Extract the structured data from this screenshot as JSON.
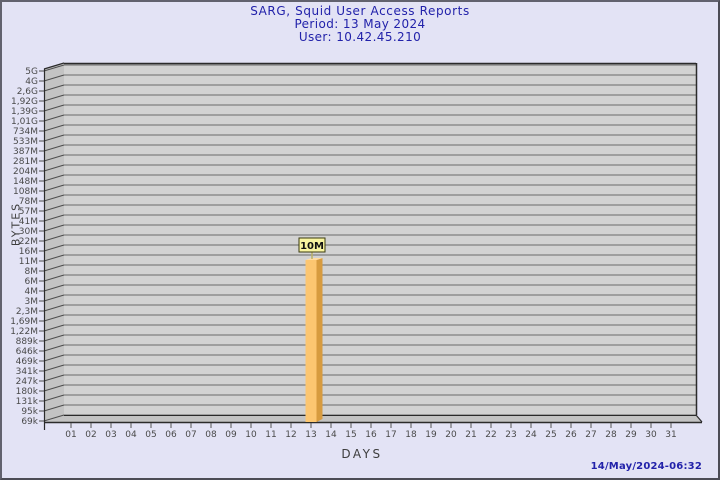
{
  "footer": {
    "timestamp": "14/May/2024-06:32"
  },
  "chart_data": {
    "type": "bar",
    "title": "SARG, Squid User Access Reports",
    "subtitle_period": "Period: 13 May 2024",
    "subtitle_user": "User: 10.42.45.210",
    "xlabel": "DAYS",
    "ylabel": "BYTES",
    "y_scale": "log",
    "grid": true,
    "legend": "none",
    "y_tick_labels_top_to_bottom": [
      "5G",
      "4G",
      "2,6G",
      "1,92G",
      "1,39G",
      "1,01G",
      "734M",
      "533M",
      "387M",
      "281M",
      "204M",
      "148M",
      "108M",
      "78M",
      "57M",
      "41M",
      "30M",
      "22M",
      "16M",
      "11M",
      "8M",
      "6M",
      "4M",
      "3M",
      "2,3M",
      "1,69M",
      "1,22M",
      "889k",
      "646k",
      "469k",
      "341k",
      "247k",
      "180k",
      "131k",
      "95k",
      "69k"
    ],
    "x_tick_labels": [
      "01",
      "02",
      "03",
      "04",
      "05",
      "06",
      "07",
      "08",
      "09",
      "10",
      "11",
      "12",
      "13",
      "14",
      "15",
      "16",
      "17",
      "18",
      "19",
      "20",
      "21",
      "22",
      "23",
      "24",
      "25",
      "26",
      "27",
      "28",
      "29",
      "30",
      "31"
    ],
    "bars": [
      {
        "day": "13",
        "value_label": "10M"
      }
    ],
    "colors": {
      "background": "#e3e3f5",
      "title_text": "#2222aa",
      "timestamp_text": "#2222aa",
      "back_wall": "#d2d2d2",
      "side_wall": "#c3c3c3",
      "gridline": "#6a6a6a",
      "edge": "#2b2b2b",
      "tick_text": "#4a4a4a",
      "bar_front": "#fcc671",
      "bar_side": "#d79b3f",
      "bar_top": "#ffdca0",
      "value_box_bg": "#f8f4a0",
      "value_box_border": "#3a3a10",
      "value_text": "#111111",
      "pointer_line": "#b9b167"
    }
  }
}
